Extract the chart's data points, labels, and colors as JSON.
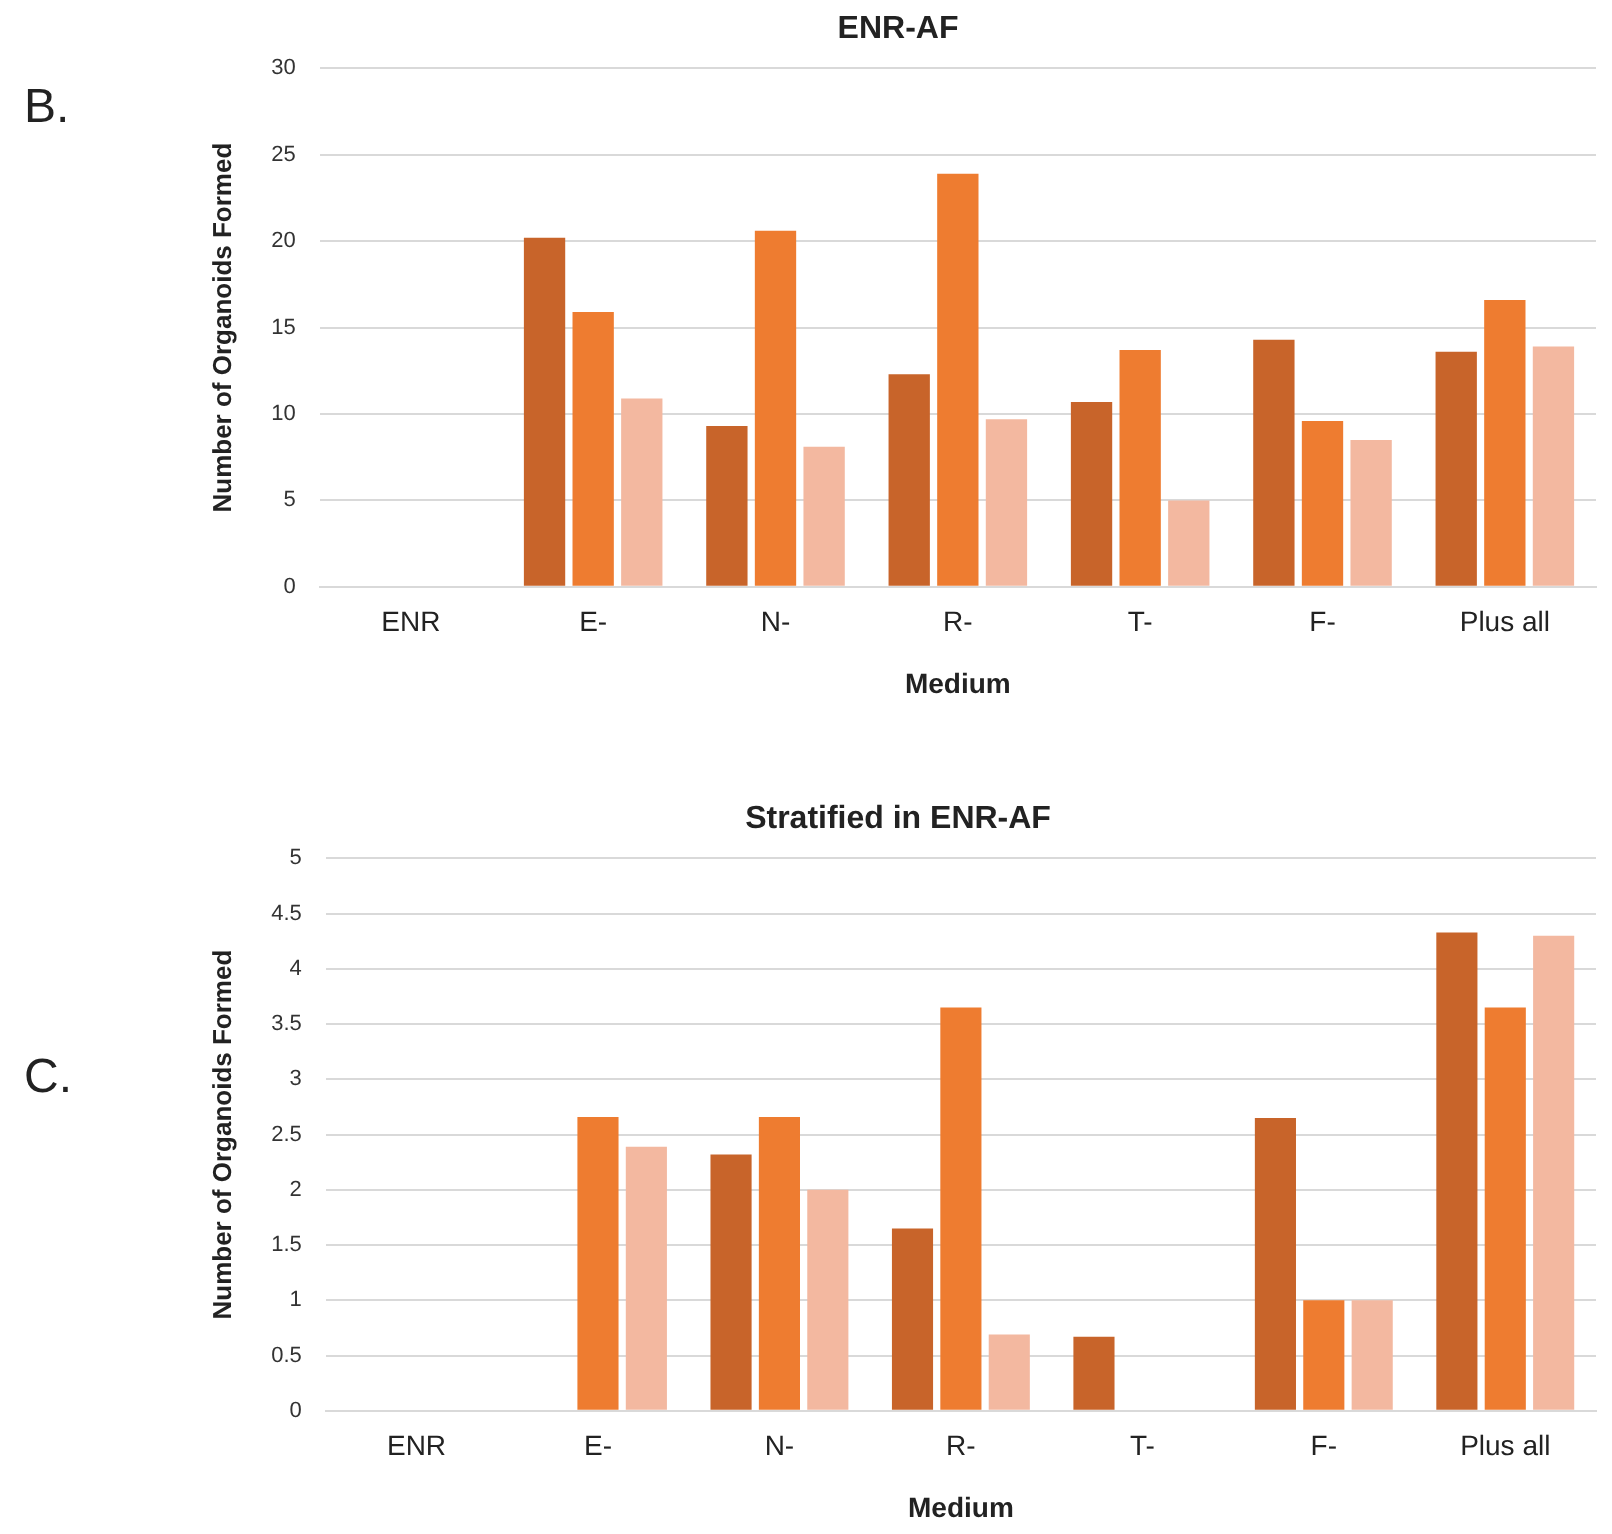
{
  "chart_data": [
    {
      "type": "bar",
      "title": "ENR-AF",
      "xlabel": "Medium",
      "ylabel": "Number of Organoids Formed",
      "annotations": [
        "B."
      ],
      "categories": [
        "ENR",
        "E-",
        "N-",
        "R-",
        "T-",
        "F-",
        "Plus all"
      ],
      "series": [
        {
          "color": "#c8642a",
          "values": [
            0,
            20.2,
            9.3,
            12.3,
            10.7,
            14.3,
            13.6
          ]
        },
        {
          "color": "#ee7c30",
          "values": [
            0,
            15.9,
            20.6,
            23.9,
            13.7,
            9.6,
            16.6
          ]
        },
        {
          "color": "#f3b8a0",
          "values": [
            0,
            10.9,
            8.1,
            9.7,
            5.0,
            8.5,
            13.9
          ]
        }
      ],
      "ylim": [
        0,
        30
      ],
      "yticks": [
        0,
        5,
        10,
        15,
        20,
        25,
        30
      ],
      "grid": "y",
      "legend": false
    },
    {
      "type": "bar",
      "title": "Stratified in ENR-AF",
      "xlabel": "Medium",
      "ylabel": "Number of Organoids Formed",
      "annotations": [
        "C."
      ],
      "categories": [
        "ENR",
        "E-",
        "N-",
        "R-",
        "T-",
        "F-",
        "Plus all"
      ],
      "series": [
        {
          "color": "#c8642a",
          "values": [
            0,
            0,
            2.32,
            1.65,
            0.67,
            2.65,
            4.33
          ]
        },
        {
          "color": "#ee7c30",
          "values": [
            0,
            2.66,
            2.66,
            3.65,
            0,
            1.0,
            3.65
          ]
        },
        {
          "color": "#f3b8a0",
          "values": [
            0,
            2.39,
            2.0,
            0.69,
            0,
            1.0,
            4.3
          ]
        }
      ],
      "ylim": [
        0,
        5
      ],
      "yticks": [
        0,
        0.5,
        1,
        1.5,
        2,
        2.5,
        3,
        3.5,
        4,
        4.5,
        5
      ],
      "grid": "y",
      "legend": false
    }
  ]
}
